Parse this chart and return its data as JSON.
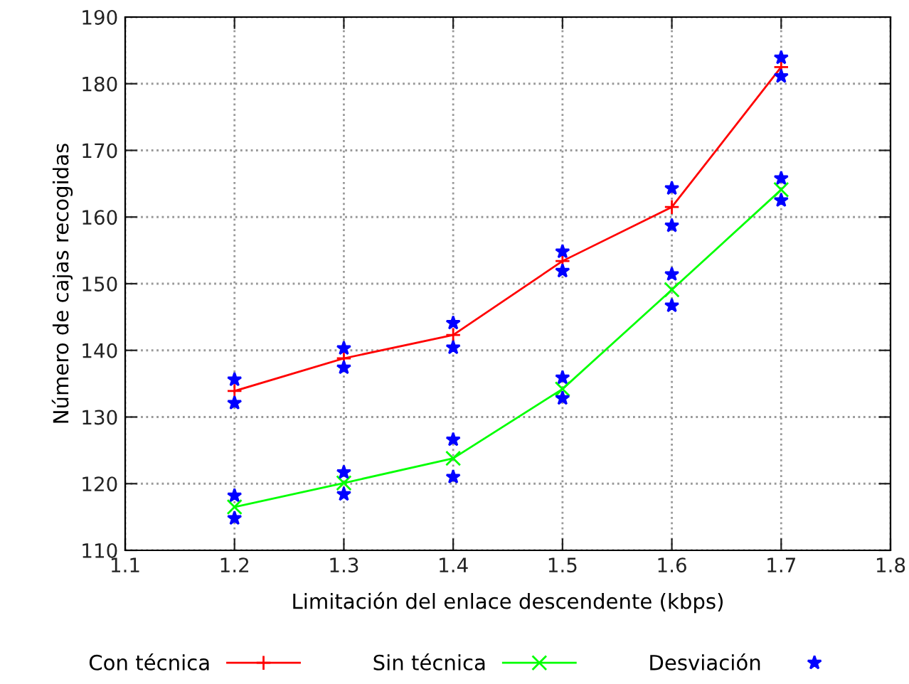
{
  "chart_data": {
    "type": "line",
    "xlabel": "Limitación del enlace descendente (kbps)",
    "ylabel": "Número de cajas recogidas",
    "x": [
      1.2,
      1.3,
      1.4,
      1.5,
      1.6,
      1.7
    ],
    "series": [
      {
        "name": "Con técnica",
        "color": "#ff0000",
        "marker": "cross",
        "values": [
          133.9,
          138.8,
          142.3,
          153.4,
          161.5,
          182.5
        ]
      },
      {
        "name": "Sin técnica",
        "color": "#00ff00",
        "marker": "x",
        "values": [
          116.5,
          120.1,
          123.8,
          134.2,
          149.1,
          164.1
        ]
      },
      {
        "name": "Desviación",
        "type": "scatter",
        "color": "#0000ff",
        "marker": "star",
        "x": [
          1.2,
          1.2,
          1.2,
          1.2,
          1.3,
          1.3,
          1.3,
          1.3,
          1.4,
          1.4,
          1.4,
          1.4,
          1.5,
          1.5,
          1.5,
          1.5,
          1.6,
          1.6,
          1.6,
          1.6,
          1.7,
          1.7,
          1.7,
          1.7
        ],
        "values": [
          135.6,
          132.1,
          118.2,
          114.8,
          140.3,
          137.4,
          121.7,
          118.4,
          144.1,
          140.4,
          126.6,
          121.0,
          154.8,
          151.9,
          135.9,
          132.8,
          164.3,
          158.7,
          151.4,
          146.7,
          183.9,
          181.1,
          165.8,
          162.5
        ]
      }
    ],
    "xlim": [
      1.1,
      1.8
    ],
    "xticks": [
      1.1,
      1.2,
      1.3,
      1.4,
      1.5,
      1.6,
      1.7,
      1.8
    ],
    "ylim": [
      110,
      190
    ],
    "yticks": [
      110,
      120,
      130,
      140,
      150,
      160,
      170,
      180,
      190
    ],
    "grid": true,
    "legend": "bottom",
    "line_style": "solid"
  }
}
